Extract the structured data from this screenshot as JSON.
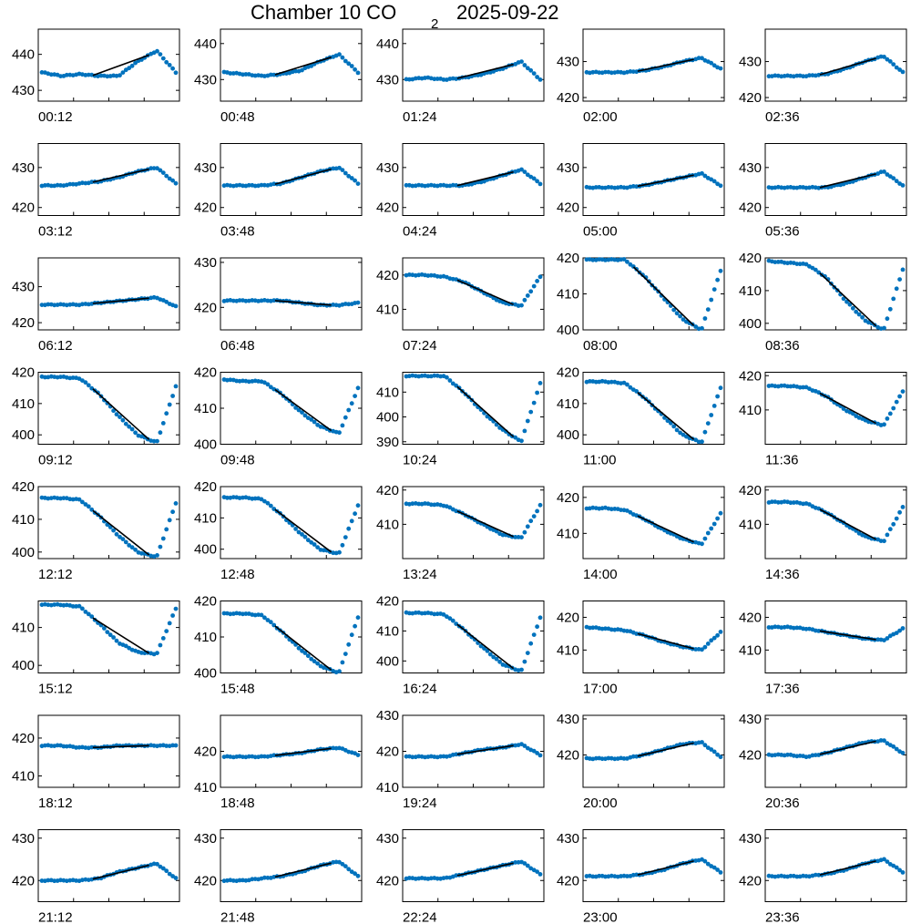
{
  "figure": {
    "title_prefix": "Chamber 10 CO",
    "title_subscript": "2",
    "title_date": "2025-09-22",
    "colors": {
      "points": "#0072BD",
      "fit": "#000000",
      "axes": "#000000"
    }
  },
  "chart_data": [
    {
      "type": "scatter",
      "label": "00:12",
      "yticks": [
        430,
        440
      ],
      "ylim": [
        427,
        447
      ],
      "fit_range": [
        0.38,
        0.8
      ],
      "series": [
        {
          "name": "",
          "values": [
            435,
            434,
            434.5,
            434,
            434,
            438,
            441,
            435
          ]
        }
      ]
    },
    {
      "type": "scatter",
      "label": "00:48",
      "yticks": [
        430,
        440
      ],
      "ylim": [
        424,
        444
      ],
      "fit_range": [
        0.38,
        0.8
      ],
      "series": [
        {
          "name": "",
          "values": [
            432,
            431.5,
            431,
            431.5,
            432.5,
            435,
            437,
            432
          ]
        }
      ]
    },
    {
      "type": "scatter",
      "label": "01:24",
      "yticks": [
        430,
        440
      ],
      "ylim": [
        424,
        444
      ],
      "fit_range": [
        0.38,
        0.8
      ],
      "series": [
        {
          "name": "",
          "values": [
            430,
            430.5,
            430,
            430.5,
            431.5,
            433,
            435,
            430
          ]
        }
      ]
    },
    {
      "type": "scatter",
      "label": "02:00",
      "yticks": [
        420,
        430
      ],
      "ylim": [
        419,
        439
      ],
      "fit_range": [
        0.38,
        0.8
      ],
      "series": [
        {
          "name": "",
          "values": [
            427,
            427,
            427,
            427.5,
            428.5,
            430,
            431,
            428
          ]
        }
      ]
    },
    {
      "type": "scatter",
      "label": "02:36",
      "yticks": [
        420,
        430
      ],
      "ylim": [
        419,
        439
      ],
      "fit_range": [
        0.38,
        0.8
      ],
      "series": [
        {
          "name": "",
          "values": [
            426,
            426,
            426,
            426.5,
            428,
            430,
            431.5,
            427
          ]
        }
      ]
    },
    {
      "type": "scatter",
      "label": "03:12",
      "yticks": [
        420,
        430
      ],
      "ylim": [
        418,
        436
      ],
      "fit_range": [
        0.38,
        0.8
      ],
      "series": [
        {
          "name": "",
          "values": [
            425.5,
            425.5,
            426,
            426.5,
            427.5,
            429,
            430,
            426
          ]
        }
      ]
    },
    {
      "type": "scatter",
      "label": "03:48",
      "yticks": [
        420,
        430
      ],
      "ylim": [
        418,
        436
      ],
      "fit_range": [
        0.38,
        0.8
      ],
      "series": [
        {
          "name": "",
          "values": [
            425.5,
            425.5,
            425.5,
            426,
            427.5,
            429,
            430,
            426
          ]
        }
      ]
    },
    {
      "type": "scatter",
      "label": "04:24",
      "yticks": [
        420,
        430
      ],
      "ylim": [
        418,
        436
      ],
      "fit_range": [
        0.38,
        0.8
      ],
      "series": [
        {
          "name": "",
          "values": [
            425.5,
            425.5,
            425.5,
            425.5,
            426.5,
            428,
            429.5,
            426
          ]
        }
      ]
    },
    {
      "type": "scatter",
      "label": "05:00",
      "yticks": [
        420,
        430
      ],
      "ylim": [
        418,
        436
      ],
      "fit_range": [
        0.38,
        0.8
      ],
      "series": [
        {
          "name": "",
          "values": [
            425,
            425,
            425,
            425.5,
            426.5,
            427.5,
            428.5,
            425.5
          ]
        }
      ]
    },
    {
      "type": "scatter",
      "label": "05:36",
      "yticks": [
        420,
        430
      ],
      "ylim": [
        418,
        436
      ],
      "fit_range": [
        0.38,
        0.8
      ],
      "series": [
        {
          "name": "",
          "values": [
            425,
            425,
            425,
            425,
            426,
            427.5,
            429,
            425.5
          ]
        }
      ]
    },
    {
      "type": "scatter",
      "label": "06:12",
      "yticks": [
        420,
        430
      ],
      "ylim": [
        418,
        438
      ],
      "fit_range": [
        0.38,
        0.8
      ],
      "series": [
        {
          "name": "",
          "values": [
            425,
            425,
            425,
            425.5,
            426,
            426.5,
            427,
            424.5
          ]
        }
      ]
    },
    {
      "type": "scatter",
      "label": "06:48",
      "yticks": [
        420,
        430
      ],
      "ylim": [
        415,
        431
      ],
      "fit_range": [
        0.38,
        0.8
      ],
      "series": [
        {
          "name": "",
          "values": [
            421.5,
            421.5,
            421.5,
            421.5,
            421,
            420.5,
            420.5,
            421
          ]
        }
      ]
    },
    {
      "type": "scatter",
      "label": "07:24",
      "yticks": [
        410,
        420
      ],
      "ylim": [
        404,
        425
      ],
      "fit_range": [
        0.38,
        0.8
      ],
      "series": [
        {
          "name": "",
          "values": [
            420,
            420,
            419.5,
            418,
            415,
            412,
            411,
            419.5
          ]
        }
      ]
    },
    {
      "type": "scatter",
      "label": "08:00",
      "yticks": [
        400,
        410,
        420
      ],
      "ylim": [
        400,
        420
      ],
      "fit_range": [
        0.35,
        0.8
      ],
      "series": [
        {
          "name": "",
          "values": [
            419.5,
            419.5,
            419.5,
            415,
            409,
            403,
            400,
            416.5
          ]
        }
      ]
    },
    {
      "type": "scatter",
      "label": "08:36",
      "yticks": [
        400,
        410,
        420
      ],
      "ylim": [
        398,
        420
      ],
      "fit_range": [
        0.38,
        0.8
      ],
      "series": [
        {
          "name": "",
          "values": [
            419,
            418.5,
            418,
            414,
            407,
            401,
            398,
            416.5
          ]
        }
      ]
    },
    {
      "type": "scatter",
      "label": "09:12",
      "yticks": [
        400,
        410,
        420
      ],
      "ylim": [
        397,
        420
      ],
      "fit_range": [
        0.38,
        0.8
      ],
      "series": [
        {
          "name": "",
          "values": [
            418.5,
            418.5,
            418,
            413,
            406,
            400,
            397.5,
            415.5
          ]
        }
      ]
    },
    {
      "type": "scatter",
      "label": "09:48",
      "yticks": [
        400,
        410,
        420
      ],
      "ylim": [
        400,
        420
      ],
      "fit_range": [
        0.38,
        0.8
      ],
      "series": [
        {
          "name": "",
          "values": [
            418,
            417.5,
            417.5,
            414,
            409,
            405,
            403,
            415.5
          ]
        }
      ]
    },
    {
      "type": "scatter",
      "label": "10:24",
      "yticks": [
        390,
        400,
        410
      ],
      "ylim": [
        389,
        418
      ],
      "fit_range": [
        0.38,
        0.8
      ],
      "series": [
        {
          "name": "",
          "values": [
            416.5,
            416.5,
            416.5,
            410,
            402,
            395,
            390,
            413.5
          ]
        }
      ]
    },
    {
      "type": "scatter",
      "label": "11:00",
      "yticks": [
        400,
        410,
        420
      ],
      "ylim": [
        397,
        420
      ],
      "fit_range": [
        0.38,
        0.8
      ],
      "series": [
        {
          "name": "",
          "values": [
            417,
            417,
            416.5,
            412,
            406,
            400,
            397.5,
            415
          ]
        }
      ]
    },
    {
      "type": "scatter",
      "label": "11:36",
      "yticks": [
        410,
        420
      ],
      "ylim": [
        400,
        421
      ],
      "fit_range": [
        0.38,
        0.8
      ],
      "series": [
        {
          "name": "",
          "values": [
            417,
            417,
            416.5,
            414,
            410,
            407,
            405.5,
            415.5
          ]
        }
      ]
    },
    {
      "type": "scatter",
      "label": "12:12",
      "yticks": [
        400,
        410,
        420
      ],
      "ylim": [
        398,
        420
      ],
      "fit_range": [
        0.38,
        0.8
      ],
      "series": [
        {
          "name": "",
          "values": [
            416.5,
            416.5,
            416,
            411,
            405,
            400,
            398.5,
            415
          ]
        }
      ]
    },
    {
      "type": "scatter",
      "label": "12:48",
      "yticks": [
        400,
        410,
        420
      ],
      "ylim": [
        397,
        420
      ],
      "fit_range": [
        0.38,
        0.8
      ],
      "series": [
        {
          "name": "",
          "values": [
            416.5,
            416.5,
            416,
            411,
            405,
            400,
            398.5,
            414
          ]
        }
      ]
    },
    {
      "type": "scatter",
      "label": "13:24",
      "yticks": [
        410,
        420
      ],
      "ylim": [
        400,
        421
      ],
      "fit_range": [
        0.38,
        0.8
      ],
      "series": [
        {
          "name": "",
          "values": [
            416,
            416,
            415.5,
            413,
            410,
            407,
            406,
            415.5
          ]
        }
      ]
    },
    {
      "type": "scatter",
      "label": "14:00",
      "yticks": [
        410,
        420
      ],
      "ylim": [
        403,
        423
      ],
      "fit_range": [
        0.38,
        0.8
      ],
      "series": [
        {
          "name": "",
          "values": [
            417,
            417,
            416.5,
            414,
            411,
            408.5,
            407,
            415.5
          ]
        }
      ]
    },
    {
      "type": "scatter",
      "label": "14:36",
      "yticks": [
        410,
        420
      ],
      "ylim": [
        400,
        421
      ],
      "fit_range": [
        0.38,
        0.8
      ],
      "series": [
        {
          "name": "",
          "values": [
            416.5,
            416.5,
            416,
            413.5,
            410,
            406.5,
            405,
            415
          ]
        }
      ]
    },
    {
      "type": "scatter",
      "label": "15:12",
      "yticks": [
        400,
        410
      ],
      "ylim": [
        398,
        417
      ],
      "fit_range": [
        0.38,
        0.8
      ],
      "series": [
        {
          "name": "",
          "values": [
            416,
            416,
            415.5,
            411,
            406,
            403.5,
            403,
            415
          ]
        }
      ]
    },
    {
      "type": "scatter",
      "label": "15:48",
      "yticks": [
        400,
        410,
        420
      ],
      "ylim": [
        400,
        420
      ],
      "fit_range": [
        0.38,
        0.8
      ],
      "series": [
        {
          "name": "",
          "values": [
            416.5,
            416.5,
            416,
            411.5,
            406.5,
            402,
            400,
            415.5
          ]
        }
      ]
    },
    {
      "type": "scatter",
      "label": "16:24",
      "yticks": [
        400,
        410,
        420
      ],
      "ylim": [
        396,
        420
      ],
      "fit_range": [
        0.38,
        0.8
      ],
      "series": [
        {
          "name": "",
          "values": [
            416,
            416,
            415.5,
            410.5,
            404.5,
            399,
            396.5,
            414.5
          ]
        }
      ]
    },
    {
      "type": "scatter",
      "label": "17:00",
      "yticks": [
        410,
        420
      ],
      "ylim": [
        403,
        425
      ],
      "fit_range": [
        0.38,
        0.8
      ],
      "series": [
        {
          "name": "",
          "values": [
            417,
            416.5,
            416,
            414.5,
            412.5,
            411,
            410,
            415.5
          ]
        }
      ]
    },
    {
      "type": "scatter",
      "label": "17:36",
      "yticks": [
        410,
        420
      ],
      "ylim": [
        403,
        425
      ],
      "fit_range": [
        0.38,
        0.8
      ],
      "series": [
        {
          "name": "",
          "values": [
            417,
            417,
            416.5,
            415.5,
            414.5,
            413.5,
            413,
            416.5
          ]
        }
      ]
    },
    {
      "type": "scatter",
      "label": "18:12",
      "yticks": [
        410,
        420
      ],
      "ylim": [
        407,
        426
      ],
      "fit_range": [
        0.38,
        0.8
      ],
      "series": [
        {
          "name": "",
          "values": [
            418,
            418,
            417.5,
            417.5,
            418,
            418,
            418,
            418
          ]
        }
      ]
    },
    {
      "type": "scatter",
      "label": "18:48",
      "yticks": [
        410,
        420
      ],
      "ylim": [
        410,
        430
      ],
      "fit_range": [
        0.38,
        0.8
      ],
      "series": [
        {
          "name": "",
          "values": [
            418.5,
            418.5,
            418.5,
            419,
            419.5,
            420.5,
            421,
            419
          ]
        }
      ]
    },
    {
      "type": "scatter",
      "label": "19:24",
      "yticks": [
        410,
        420,
        430
      ],
      "ylim": [
        410,
        430
      ],
      "fit_range": [
        0.38,
        0.8
      ],
      "series": [
        {
          "name": "",
          "values": [
            418.5,
            418.5,
            418.5,
            419.5,
            420.5,
            421,
            422,
            419
          ]
        }
      ]
    },
    {
      "type": "scatter",
      "label": "20:00",
      "yticks": [
        420,
        430
      ],
      "ylim": [
        411,
        431
      ],
      "fit_range": [
        0.38,
        0.8
      ],
      "series": [
        {
          "name": "",
          "values": [
            419,
            419,
            419,
            420,
            421.5,
            423,
            423.5,
            419.5
          ]
        }
      ]
    },
    {
      "type": "scatter",
      "label": "20:36",
      "yticks": [
        420,
        430
      ],
      "ylim": [
        411,
        431
      ],
      "fit_range": [
        0.38,
        0.8
      ],
      "series": [
        {
          "name": "",
          "values": [
            420,
            420,
            419.5,
            420.5,
            422,
            423.5,
            424,
            420.5
          ]
        }
      ]
    },
    {
      "type": "scatter",
      "label": "21:12",
      "yticks": [
        420,
        430
      ],
      "ylim": [
        415,
        432
      ],
      "fit_range": [
        0.38,
        0.8
      ],
      "series": [
        {
          "name": "",
          "values": [
            420,
            420,
            420,
            420.5,
            422,
            423,
            424,
            420.5
          ]
        }
      ]
    },
    {
      "type": "scatter",
      "label": "21:48",
      "yticks": [
        420,
        430
      ],
      "ylim": [
        415,
        432
      ],
      "fit_range": [
        0.38,
        0.8
      ],
      "series": [
        {
          "name": "",
          "values": [
            420,
            420,
            420.5,
            421,
            422,
            423.5,
            424.5,
            421
          ]
        }
      ]
    },
    {
      "type": "scatter",
      "label": "22:24",
      "yticks": [
        420,
        430
      ],
      "ylim": [
        415,
        432
      ],
      "fit_range": [
        0.38,
        0.8
      ],
      "series": [
        {
          "name": "",
          "values": [
            420.5,
            420.5,
            420.5,
            421.5,
            422.5,
            423.5,
            424.5,
            421.5
          ]
        }
      ]
    },
    {
      "type": "scatter",
      "label": "23:00",
      "yticks": [
        420,
        430
      ],
      "ylim": [
        415,
        432
      ],
      "fit_range": [
        0.38,
        0.8
      ],
      "series": [
        {
          "name": "",
          "values": [
            421,
            421,
            421,
            421.5,
            422.5,
            424,
            425,
            422
          ]
        }
      ]
    },
    {
      "type": "scatter",
      "label": "23:36",
      "yticks": [
        420,
        430
      ],
      "ylim": [
        415,
        432
      ],
      "fit_range": [
        0.38,
        0.8
      ],
      "series": [
        {
          "name": "",
          "values": [
            421,
            421,
            421,
            421.5,
            422.5,
            424,
            425,
            422
          ]
        }
      ]
    }
  ]
}
